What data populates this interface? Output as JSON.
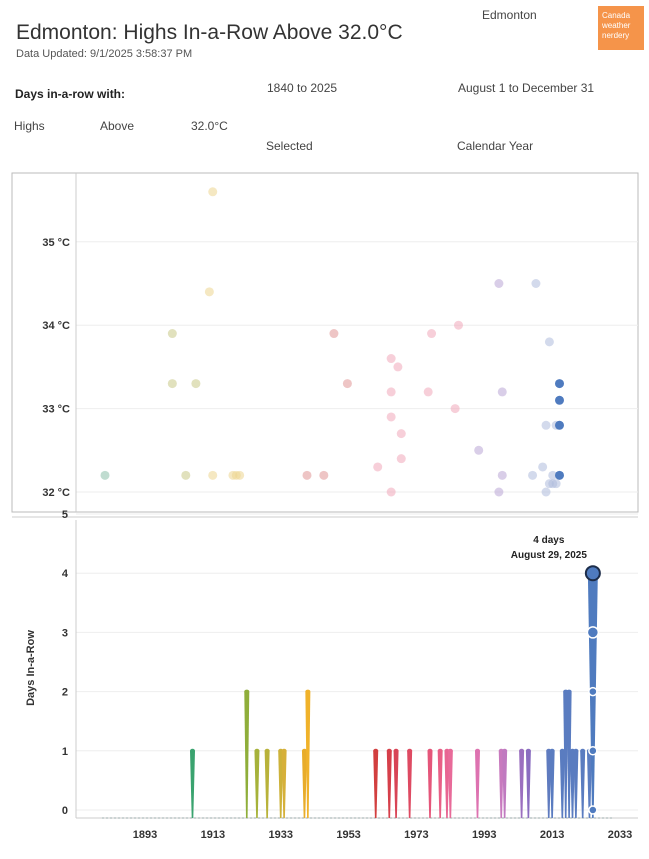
{
  "header": {
    "title": "Edmonton: Highs In-a-Row Above 32.0°C",
    "updated": "Data Updated: 9/1/2025 3:58:37 PM",
    "station": "Edmonton",
    "logo_text": "Canada weather nerdery"
  },
  "controls": {
    "days_label": "Days in-a-row with:",
    "measure": "Highs",
    "comparison": "Above",
    "threshold": "32.0°C",
    "year_range": "1840 to 2025",
    "year_mode": "Selected",
    "date_range": "August 1 to December 31",
    "period": "Calendar Year"
  },
  "colors": {
    "teal": "#8dbfaa",
    "olive": "#c9c987",
    "yellow": "#ecd58f",
    "red": "#e09595",
    "pink": "#f0a7ba",
    "purple": "#b9a6d6",
    "blue": "#aebcdc",
    "highlight": "#4f7bbf"
  },
  "chart_data": [
    {
      "type": "scatter",
      "ylim": [
        31.8,
        36.0
      ],
      "xlim": [
        1880,
        2030
      ],
      "yticks": [
        "35 °C",
        "34 °C",
        "33 °C",
        "32 °C"
      ],
      "ytick_values": [
        35,
        34,
        33,
        32
      ],
      "points": [
        {
          "x": 1880,
          "y": 32.2,
          "c": "teal",
          "o": 0.55
        },
        {
          "x": 1900,
          "y": 33.9,
          "c": "olive",
          "o": 0.55
        },
        {
          "x": 1900,
          "y": 33.3,
          "c": "olive",
          "o": 0.55
        },
        {
          "x": 1904,
          "y": 32.2,
          "c": "olive",
          "o": 0.55
        },
        {
          "x": 1907,
          "y": 33.3,
          "c": "olive",
          "o": 0.55
        },
        {
          "x": 1911,
          "y": 34.4,
          "c": "yellow",
          "o": 0.55
        },
        {
          "x": 1912,
          "y": 35.6,
          "c": "yellow",
          "o": 0.55
        },
        {
          "x": 1912,
          "y": 32.2,
          "c": "yellow",
          "o": 0.55
        },
        {
          "x": 1918,
          "y": 32.2,
          "c": "yellow",
          "o": 0.55
        },
        {
          "x": 1919,
          "y": 32.2,
          "c": "yellow",
          "o": 0.55
        },
        {
          "x": 1920,
          "y": 32.2,
          "c": "yellow",
          "o": 0.55
        },
        {
          "x": 1940,
          "y": 32.2,
          "c": "red",
          "o": 0.55
        },
        {
          "x": 1945,
          "y": 32.2,
          "c": "red",
          "o": 0.55
        },
        {
          "x": 1948,
          "y": 33.9,
          "c": "red",
          "o": 0.55
        },
        {
          "x": 1952,
          "y": 33.3,
          "c": "red",
          "o": 0.55
        },
        {
          "x": 1961,
          "y": 32.3,
          "c": "pink",
          "o": 0.55
        },
        {
          "x": 1965,
          "y": 33.6,
          "c": "pink",
          "o": 0.55
        },
        {
          "x": 1965,
          "y": 33.2,
          "c": "pink",
          "o": 0.55
        },
        {
          "x": 1965,
          "y": 32.9,
          "c": "pink",
          "o": 0.55
        },
        {
          "x": 1965,
          "y": 32.0,
          "c": "pink",
          "o": 0.55
        },
        {
          "x": 1967,
          "y": 33.5,
          "c": "pink",
          "o": 0.55
        },
        {
          "x": 1968,
          "y": 32.7,
          "c": "pink",
          "o": 0.55
        },
        {
          "x": 1968,
          "y": 32.4,
          "c": "pink",
          "o": 0.55
        },
        {
          "x": 1976,
          "y": 33.2,
          "c": "pink",
          "o": 0.55
        },
        {
          "x": 1977,
          "y": 33.9,
          "c": "pink",
          "o": 0.55
        },
        {
          "x": 1985,
          "y": 34.0,
          "c": "pink",
          "o": 0.55
        },
        {
          "x": 1984,
          "y": 33.0,
          "c": "pink",
          "o": 0.55
        },
        {
          "x": 1991,
          "y": 32.5,
          "c": "purple",
          "o": 0.55
        },
        {
          "x": 1997,
          "y": 34.5,
          "c": "purple",
          "o": 0.55
        },
        {
          "x": 1997,
          "y": 32.0,
          "c": "purple",
          "o": 0.55
        },
        {
          "x": 1998,
          "y": 33.2,
          "c": "purple",
          "o": 0.55
        },
        {
          "x": 1998,
          "y": 32.2,
          "c": "purple",
          "o": 0.55
        },
        {
          "x": 2007,
          "y": 32.2,
          "c": "blue",
          "o": 0.55
        },
        {
          "x": 2008,
          "y": 34.5,
          "c": "blue",
          "o": 0.55
        },
        {
          "x": 2010,
          "y": 32.3,
          "c": "blue",
          "o": 0.55
        },
        {
          "x": 2011,
          "y": 32.8,
          "c": "blue",
          "o": 0.55
        },
        {
          "x": 2011,
          "y": 32.0,
          "c": "blue",
          "o": 0.55
        },
        {
          "x": 2012,
          "y": 33.8,
          "c": "blue",
          "o": 0.55
        },
        {
          "x": 2012,
          "y": 32.1,
          "c": "blue",
          "o": 0.55
        },
        {
          "x": 2013,
          "y": 32.2,
          "c": "blue",
          "o": 0.55
        },
        {
          "x": 2013,
          "y": 32.1,
          "c": "blue",
          "o": 0.55
        },
        {
          "x": 2014,
          "y": 32.8,
          "c": "blue",
          "o": 0.55
        },
        {
          "x": 2014,
          "y": 32.1,
          "c": "blue",
          "o": 0.55
        },
        {
          "x": 2015,
          "y": 33.3,
          "c": "highlight",
          "o": 1
        },
        {
          "x": 2015,
          "y": 33.1,
          "c": "highlight",
          "o": 1
        },
        {
          "x": 2015,
          "y": 32.8,
          "c": "highlight",
          "o": 1
        },
        {
          "x": 2015,
          "y": 32.2,
          "c": "highlight",
          "o": 1
        }
      ]
    },
    {
      "type": "area",
      "ylabel": "Days In-a-Row",
      "ylim": [
        -0.15,
        5.15
      ],
      "xlim": [
        1873,
        2038
      ],
      "yticks": [
        "5",
        "4",
        "3",
        "2",
        "1",
        "0"
      ],
      "ytick_values": [
        5,
        4,
        3,
        2,
        1,
        0
      ],
      "xticks": [
        "1893",
        "1913",
        "1933",
        "1953",
        "1973",
        "1993",
        "2013",
        "2033"
      ],
      "xtick_values": [
        1893,
        1913,
        1933,
        1953,
        1973,
        1993,
        2013,
        2033
      ],
      "annotation": {
        "line1": "4 days",
        "line2": "August 29, 2025",
        "x": 2025,
        "y": 4
      },
      "spikes": [
        {
          "x": 1907,
          "h": 1,
          "c": "#3aa36f"
        },
        {
          "x": 1923,
          "h": 2,
          "c": "#8fae3a"
        },
        {
          "x": 1926,
          "h": 1,
          "c": "#a6b23a"
        },
        {
          "x": 1929,
          "h": 1,
          "c": "#b8b23a"
        },
        {
          "x": 1933,
          "h": 1,
          "c": "#cdb23a"
        },
        {
          "x": 1934,
          "h": 1,
          "c": "#d6b03a"
        },
        {
          "x": 1940,
          "h": 1,
          "c": "#e8ac2a"
        },
        {
          "x": 1941,
          "h": 2,
          "c": "#f0b22a"
        },
        {
          "x": 1961,
          "h": 1,
          "c": "#d23f3f"
        },
        {
          "x": 1965,
          "h": 1,
          "c": "#d63f4a"
        },
        {
          "x": 1967,
          "h": 1,
          "c": "#d84456"
        },
        {
          "x": 1971,
          "h": 1,
          "c": "#de4a62"
        },
        {
          "x": 1977,
          "h": 1,
          "c": "#e5567a"
        },
        {
          "x": 1980,
          "h": 1,
          "c": "#e85f86"
        },
        {
          "x": 1982,
          "h": 1,
          "c": "#e86592"
        },
        {
          "x": 1983,
          "h": 1,
          "c": "#e86a99"
        },
        {
          "x": 1991,
          "h": 1,
          "c": "#dd72b0"
        },
        {
          "x": 998,
          "h": 0,
          "c": "#cc7ab8"
        },
        {
          "x": 1998,
          "h": 1,
          "c": "#c87abe"
        },
        {
          "x": 1999,
          "h": 1,
          "c": "#c07ac0"
        },
        {
          "x": 2004,
          "h": 1,
          "c": "#9b6fbf"
        },
        {
          "x": 2006,
          "h": 1,
          "c": "#8a6dc0"
        },
        {
          "x": 2012,
          "h": 1,
          "c": "#5f7bbf"
        },
        {
          "x": 2013,
          "h": 1,
          "c": "#5a7cc0"
        },
        {
          "x": 2016,
          "h": 1,
          "c": "#5a7cc0"
        },
        {
          "x": 2017,
          "h": 2,
          "c": "#5a7cc0"
        },
        {
          "x": 2018,
          "h": 2,
          "c": "#5a7cc0"
        },
        {
          "x": 2019,
          "h": 1,
          "c": "#5a7cc0"
        },
        {
          "x": 2020,
          "h": 1,
          "c": "#5a7cc0"
        },
        {
          "x": 2022,
          "h": 1,
          "c": "#5a7cc0"
        },
        {
          "x": 2024,
          "h": 1,
          "c": "#5a7cc0"
        },
        {
          "x": 2025,
          "h": 4,
          "c": "#4f7bbf"
        }
      ],
      "markers": [
        {
          "x": 2025,
          "y": 4
        },
        {
          "x": 2025,
          "y": 3
        },
        {
          "x": 2025,
          "y": 2
        },
        {
          "x": 2025,
          "y": 1
        },
        {
          "x": 2025,
          "y": 0
        }
      ]
    }
  ]
}
